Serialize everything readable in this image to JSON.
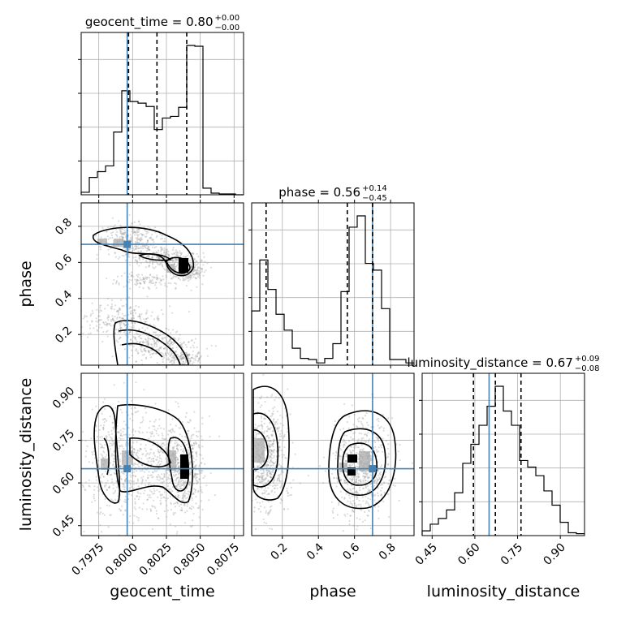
{
  "chart_data": {
    "type": "corner",
    "parameters": [
      "geocent_time",
      "phase",
      "luminosity_distance"
    ],
    "truth_color": "#4682b4",
    "truths": {
      "geocent_time": 0.7996,
      "phase": 0.7,
      "luminosity_distance": 0.65
    },
    "titles": [
      {
        "label": "geocent_time",
        "median": "0.80",
        "plus": "+0.00",
        "minus": "−0.00"
      },
      {
        "label": "phase",
        "median": "0.56",
        "plus": "+0.14",
        "minus": "−0.45"
      },
      {
        "label": "luminosity_distance",
        "median": "0.67",
        "plus": "+0.09",
        "minus": "−0.08"
      }
    ],
    "diagonal": [
      {
        "parameter": "geocent_time",
        "range": [
          0.7962,
          0.8082
        ],
        "bins_start": 0.7962,
        "bin_width": 0.0006,
        "counts": [
          3,
          21,
          28,
          35,
          76,
          126,
          113,
          111,
          107,
          79,
          93,
          95,
          106,
          181,
          180,
          8,
          2,
          1,
          1,
          0
        ],
        "quantiles": [
          0.7997,
          0.8018,
          0.804
        ]
      },
      {
        "parameter": "phase",
        "range": [
          0.03,
          0.93
        ],
        "bins_start": 0.03,
        "bin_width": 0.045,
        "counts": [
          48,
          93,
          67,
          45,
          31,
          15,
          6,
          5,
          2,
          6,
          19,
          65,
          122,
          132,
          90,
          84,
          50,
          5,
          5,
          2
        ],
        "quantiles": [
          0.11,
          0.56,
          0.7
        ]
      },
      {
        "parameter": "luminosity_distance",
        "range": [
          0.415,
          0.985
        ],
        "bins_start": 0.415,
        "bin_width": 0.0285,
        "counts": [
          5,
          12,
          18,
          27,
          45,
          76,
          96,
          116,
          136,
          157,
          131,
          116,
          79,
          72,
          63,
          47,
          32,
          14,
          3,
          2
        ],
        "quantiles": [
          0.595,
          0.672,
          0.762
        ]
      }
    ],
    "axes": {
      "geocent_time": {
        "ticks": [
          "0.7975",
          "0.8000",
          "0.8025",
          "0.8050",
          "0.8075"
        ],
        "tick_values": [
          0.7975,
          0.8,
          0.8025,
          0.805,
          0.8075
        ]
      },
      "phase": {
        "ticks": [
          "0.2",
          "0.4",
          "0.6",
          "0.8"
        ],
        "tick_values": [
          0.2,
          0.4,
          0.6,
          0.8
        ]
      },
      "luminosity_distance": {
        "ticks": [
          "0.45",
          "0.60",
          "0.75",
          "0.90"
        ],
        "tick_values": [
          0.45,
          0.6,
          0.75,
          0.9
        ]
      }
    },
    "xlabels": [
      "geocent_time",
      "phase",
      "luminosity_distance"
    ],
    "ylabels": [
      "phase",
      "luminosity_distance"
    ]
  }
}
